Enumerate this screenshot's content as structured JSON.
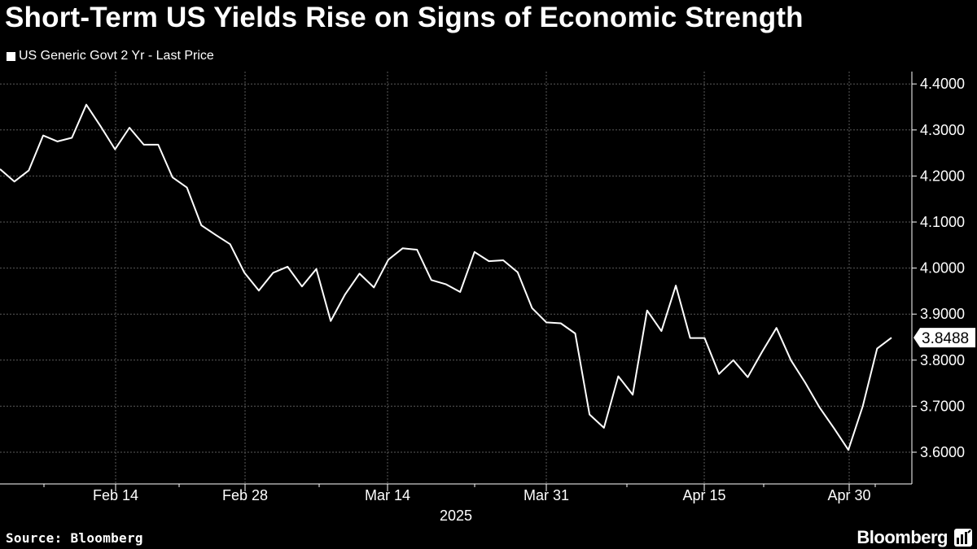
{
  "title": "Short-Term US Yields Rise on Signs of Economic Strength",
  "footer": {
    "source": "Source: Bloomberg",
    "brand": "Bloomberg"
  },
  "colors": {
    "background": "#000000",
    "line": "#ffffff",
    "grid": "#5a5a5a"
  },
  "chart_data": {
    "type": "line",
    "series": [
      {
        "name": "US Generic Govt 2 Yr - Last Price",
        "values": [
          4.215,
          4.188,
          4.212,
          4.288,
          4.275,
          4.283,
          4.355,
          4.308,
          4.258,
          4.305,
          4.268,
          4.268,
          4.197,
          4.175,
          4.093,
          4.072,
          4.052,
          3.99,
          3.951,
          3.99,
          4.003,
          3.96,
          3.998,
          3.885,
          3.943,
          3.988,
          3.958,
          4.018,
          4.043,
          4.04,
          3.974,
          3.965,
          3.948,
          4.035,
          4.015,
          4.017,
          3.991,
          3.913,
          3.882,
          3.88,
          3.858,
          3.682,
          3.653,
          3.765,
          3.725,
          3.908,
          3.863,
          3.962,
          3.848,
          3.848,
          3.77,
          3.8,
          3.763,
          3.818,
          3.87,
          3.8,
          3.751,
          3.697,
          3.652,
          3.605,
          3.7,
          3.825,
          3.8488
        ]
      }
    ],
    "last_value_label": "3.8488",
    "x_ticks": [
      "Feb 14",
      "Feb 28",
      "Mar 14",
      "Mar 31",
      "Apr 15",
      "Apr 30"
    ],
    "x_year_label": "2025",
    "y_ticks": [
      "3.6000",
      "3.7000",
      "3.8000",
      "3.9000",
      "4.0000",
      "4.1000",
      "4.2000",
      "4.3000",
      "4.4000"
    ],
    "y_range": [
      3.55,
      4.42
    ],
    "y_axis_position": "right",
    "grid": true
  }
}
